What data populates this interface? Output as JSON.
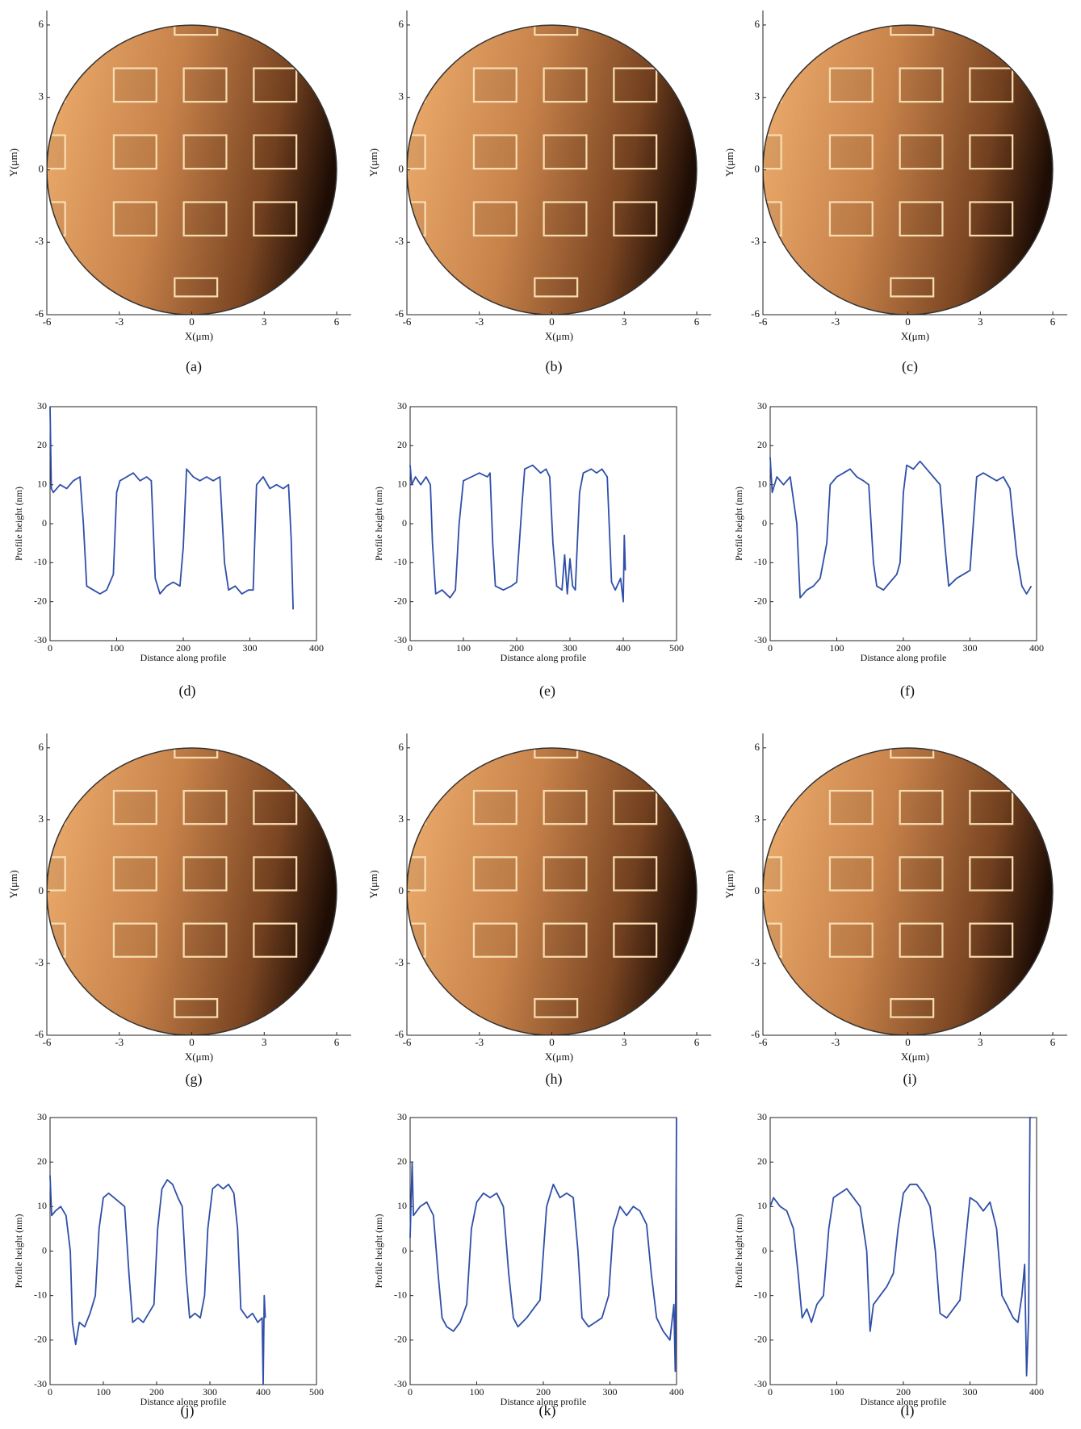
{
  "chart_data": [
    {
      "type": "image",
      "caption": "(a)",
      "x_label": "X(μm)",
      "y_label": "Y(μm)",
      "xlim": [
        -6,
        6.6
      ],
      "ylim": [
        -6,
        6.6
      ],
      "xticks": [
        -6,
        -3,
        0,
        3,
        6
      ],
      "yticks": [
        -6,
        -3,
        0,
        3,
        6
      ]
    },
    {
      "type": "image",
      "caption": "(b)",
      "x_label": "X(μm)",
      "y_label": "Y(μm)",
      "xlim": [
        -6,
        6.6
      ],
      "ylim": [
        -6,
        6.6
      ],
      "xticks": [
        -6,
        -3,
        0,
        3,
        6
      ],
      "yticks": [
        -6,
        -3,
        0,
        3,
        6
      ]
    },
    {
      "type": "image",
      "caption": "(c)",
      "x_label": "X(μm)",
      "y_label": "Y(μm)",
      "xlim": [
        -6,
        6.6
      ],
      "ylim": [
        -6,
        6.6
      ],
      "xticks": [
        -6,
        -3,
        0,
        3,
        6
      ],
      "yticks": [
        -6,
        -3,
        0,
        3,
        6
      ]
    },
    {
      "type": "line",
      "caption": "(d)",
      "x_label": "Distance along profile",
      "y_label": "Profile height (nm)",
      "color": "#2f4fa8",
      "xlim": [
        0,
        400
      ],
      "ylim": [
        -30,
        30
      ],
      "xticks": [
        0,
        100,
        200,
        300,
        400
      ],
      "yticks": [
        -30,
        -20,
        -10,
        0,
        10,
        20,
        30
      ],
      "x": [
        0,
        2,
        5,
        15,
        25,
        35,
        45,
        50,
        55,
        65,
        75,
        85,
        95,
        100,
        105,
        115,
        125,
        135,
        145,
        152,
        158,
        165,
        175,
        185,
        195,
        200,
        205,
        215,
        225,
        235,
        245,
        255,
        262,
        268,
        278,
        288,
        298,
        305,
        310,
        320,
        330,
        340,
        350,
        358,
        362,
        365
      ],
      "values": [
        30,
        9,
        8,
        10,
        9,
        11,
        12,
        0,
        -16,
        -17,
        -18,
        -17,
        -13,
        8,
        11,
        12,
        13,
        11,
        12,
        11,
        -14,
        -18,
        -16,
        -15,
        -16,
        -6,
        14,
        12,
        11,
        12,
        11,
        12,
        -10,
        -17,
        -16,
        -18,
        -17,
        -17,
        10,
        12,
        9,
        10,
        9,
        10,
        -4,
        -22
      ]
    },
    {
      "type": "line",
      "caption": "(e)",
      "x_label": "Distance along profile",
      "y_label": "Profile height (nm)",
      "color": "#2f4fa8",
      "xlim": [
        0,
        500
      ],
      "ylim": [
        -30,
        30
      ],
      "xticks": [
        0,
        100,
        200,
        300,
        400,
        500
      ],
      "yticks": [
        -30,
        -20,
        -10,
        0,
        10,
        20,
        30
      ],
      "x": [
        0,
        3,
        10,
        20,
        30,
        38,
        42,
        48,
        60,
        75,
        85,
        92,
        100,
        115,
        130,
        145,
        150,
        155,
        160,
        175,
        190,
        200,
        210,
        215,
        230,
        245,
        255,
        262,
        268,
        275,
        285,
        290,
        295,
        300,
        305,
        310,
        318,
        325,
        340,
        350,
        360,
        370,
        378,
        385,
        395,
        400,
        402,
        404
      ],
      "values": [
        15,
        10,
        12,
        10,
        12,
        10,
        -5,
        -18,
        -17,
        -19,
        -17,
        0,
        11,
        12,
        13,
        12,
        13,
        -5,
        -16,
        -17,
        -16,
        -15,
        5,
        14,
        15,
        13,
        14,
        12,
        -5,
        -16,
        -17,
        -8,
        -18,
        -9,
        -16,
        -17,
        8,
        13,
        14,
        13,
        14,
        12,
        -15,
        -17,
        -14,
        -20,
        -3,
        -12
      ]
    },
    {
      "type": "line",
      "caption": "(f)",
      "x_label": "Distance along profile",
      "y_label": "Profile height (nm)",
      "color": "#2f4fa8",
      "xlim": [
        0,
        400
      ],
      "ylim": [
        -30,
        30
      ],
      "xticks": [
        0,
        100,
        200,
        300,
        400
      ],
      "yticks": [
        -30,
        -20,
        -10,
        0,
        10,
        20,
        30
      ],
      "x": [
        0,
        3,
        10,
        20,
        30,
        40,
        45,
        55,
        65,
        75,
        85,
        90,
        100,
        110,
        120,
        130,
        140,
        148,
        155,
        160,
        170,
        180,
        190,
        195,
        200,
        205,
        215,
        225,
        235,
        245,
        255,
        262,
        268,
        280,
        290,
        300,
        305,
        310,
        320,
        330,
        340,
        350,
        360,
        370,
        378,
        385,
        392
      ],
      "values": [
        17,
        8,
        12,
        10,
        12,
        0,
        -19,
        -17,
        -16,
        -14,
        -5,
        10,
        12,
        13,
        14,
        12,
        11,
        10,
        -10,
        -16,
        -17,
        -15,
        -13,
        -10,
        8,
        15,
        14,
        16,
        14,
        12,
        10,
        -5,
        -16,
        -14,
        -13,
        -12,
        0,
        12,
        13,
        12,
        11,
        12,
        9,
        -8,
        -16,
        -18,
        -16
      ]
    },
    {
      "type": "image",
      "caption": "(g)",
      "x_label": "X(μm)",
      "y_label": "Y(μm)",
      "xlim": [
        -6,
        6.6
      ],
      "ylim": [
        -6,
        6.6
      ],
      "xticks": [
        -6,
        -3,
        0,
        3,
        6
      ],
      "yticks": [
        -6,
        -3,
        0,
        3,
        6
      ]
    },
    {
      "type": "image",
      "caption": "(h)",
      "x_label": "X(μm)",
      "y_label": "Y(μm)",
      "xlim": [
        -6,
        6.6
      ],
      "ylim": [
        -6,
        6.6
      ],
      "xticks": [
        -6,
        -3,
        0,
        3,
        6
      ],
      "yticks": [
        -6,
        -3,
        0,
        3,
        6
      ]
    },
    {
      "type": "image",
      "caption": "(i)",
      "x_label": "X(μm)",
      "y_label": "Y(μm)",
      "xlim": [
        -6,
        6.6
      ],
      "ylim": [
        -6,
        6.6
      ],
      "xticks": [
        -6,
        -3,
        0,
        3,
        6
      ],
      "yticks": [
        -6,
        -3,
        0,
        3,
        6
      ]
    },
    {
      "type": "line",
      "caption": "(j)",
      "x_label": "Distance along profile",
      "y_label": "Profile height (nm)",
      "color": "#2f4fa8",
      "xlim": [
        0,
        500
      ],
      "ylim": [
        -30,
        30
      ],
      "xticks": [
        0,
        100,
        200,
        300,
        400,
        500
      ],
      "yticks": [
        -30,
        -20,
        -10,
        0,
        10,
        20,
        30
      ],
      "x": [
        0,
        3,
        10,
        20,
        30,
        38,
        42,
        48,
        55,
        65,
        75,
        85,
        92,
        100,
        110,
        120,
        130,
        140,
        148,
        155,
        165,
        175,
        185,
        195,
        202,
        210,
        220,
        230,
        240,
        248,
        255,
        262,
        272,
        282,
        290,
        296,
        305,
        315,
        325,
        335,
        345,
        352,
        358,
        370,
        380,
        390,
        398,
        400,
        402,
        404
      ],
      "values": [
        17,
        8,
        9,
        10,
        8,
        0,
        -16,
        -21,
        -16,
        -17,
        -14,
        -10,
        5,
        12,
        13,
        12,
        11,
        10,
        -5,
        -16,
        -15,
        -16,
        -14,
        -12,
        5,
        14,
        16,
        15,
        12,
        10,
        -5,
        -15,
        -14,
        -15,
        -10,
        5,
        14,
        15,
        14,
        15,
        13,
        5,
        -13,
        -15,
        -14,
        -16,
        -15,
        -30,
        -10,
        -15
      ]
    },
    {
      "type": "line",
      "caption": "(k)",
      "x_label": "Distance along profile",
      "y_label": "Profile height (nm)",
      "color": "#2f4fa8",
      "xlim": [
        0,
        400
      ],
      "ylim": [
        -30,
        30
      ],
      "xticks": [
        0,
        100,
        200,
        300,
        400
      ],
      "yticks": [
        -30,
        -20,
        -10,
        0,
        10,
        20,
        30
      ],
      "x": [
        0,
        3,
        5,
        15,
        25,
        35,
        42,
        48,
        55,
        65,
        75,
        85,
        92,
        100,
        110,
        120,
        130,
        140,
        148,
        155,
        162,
        175,
        185,
        195,
        205,
        215,
        225,
        235,
        245,
        252,
        258,
        268,
        278,
        288,
        298,
        305,
        315,
        325,
        335,
        345,
        355,
        362,
        370,
        380,
        390,
        396,
        398,
        400
      ],
      "values": [
        3,
        20,
        8,
        10,
        11,
        8,
        -5,
        -15,
        -17,
        -18,
        -16,
        -12,
        5,
        11,
        13,
        12,
        13,
        10,
        -5,
        -15,
        -17,
        -15,
        -13,
        -11,
        10,
        15,
        12,
        13,
        12,
        0,
        -15,
        -17,
        -16,
        -15,
        -10,
        5,
        10,
        8,
        10,
        9,
        6,
        -5,
        -15,
        -18,
        -20,
        -12,
        -27,
        30
      ]
    },
    {
      "type": "line",
      "caption": "(l)",
      "x_label": "Distance along profile",
      "y_label": "Profile height (nm)",
      "color": "#2f4fa8",
      "xlim": [
        0,
        400
      ],
      "ylim": [
        -30,
        30
      ],
      "xticks": [
        0,
        100,
        200,
        300,
        400
      ],
      "yticks": [
        -30,
        -20,
        -10,
        0,
        10,
        20,
        30
      ],
      "x": [
        0,
        5,
        15,
        25,
        35,
        42,
        48,
        55,
        62,
        70,
        80,
        88,
        95,
        105,
        115,
        125,
        135,
        145,
        150,
        155,
        165,
        175,
        185,
        192,
        200,
        210,
        220,
        230,
        240,
        248,
        255,
        265,
        275,
        285,
        292,
        300,
        310,
        320,
        330,
        340,
        348,
        355,
        365,
        372,
        378,
        382,
        385,
        388,
        390,
        392
      ],
      "values": [
        10,
        12,
        10,
        9,
        5,
        -5,
        -15,
        -13,
        -16,
        -12,
        -10,
        5,
        12,
        13,
        14,
        12,
        10,
        0,
        -18,
        -12,
        -10,
        -8,
        -5,
        5,
        13,
        15,
        15,
        13,
        10,
        0,
        -14,
        -15,
        -13,
        -11,
        0,
        12,
        11,
        9,
        11,
        5,
        -10,
        -12,
        -15,
        -16,
        -10,
        -3,
        -28,
        -15,
        30,
        30
      ]
    }
  ]
}
